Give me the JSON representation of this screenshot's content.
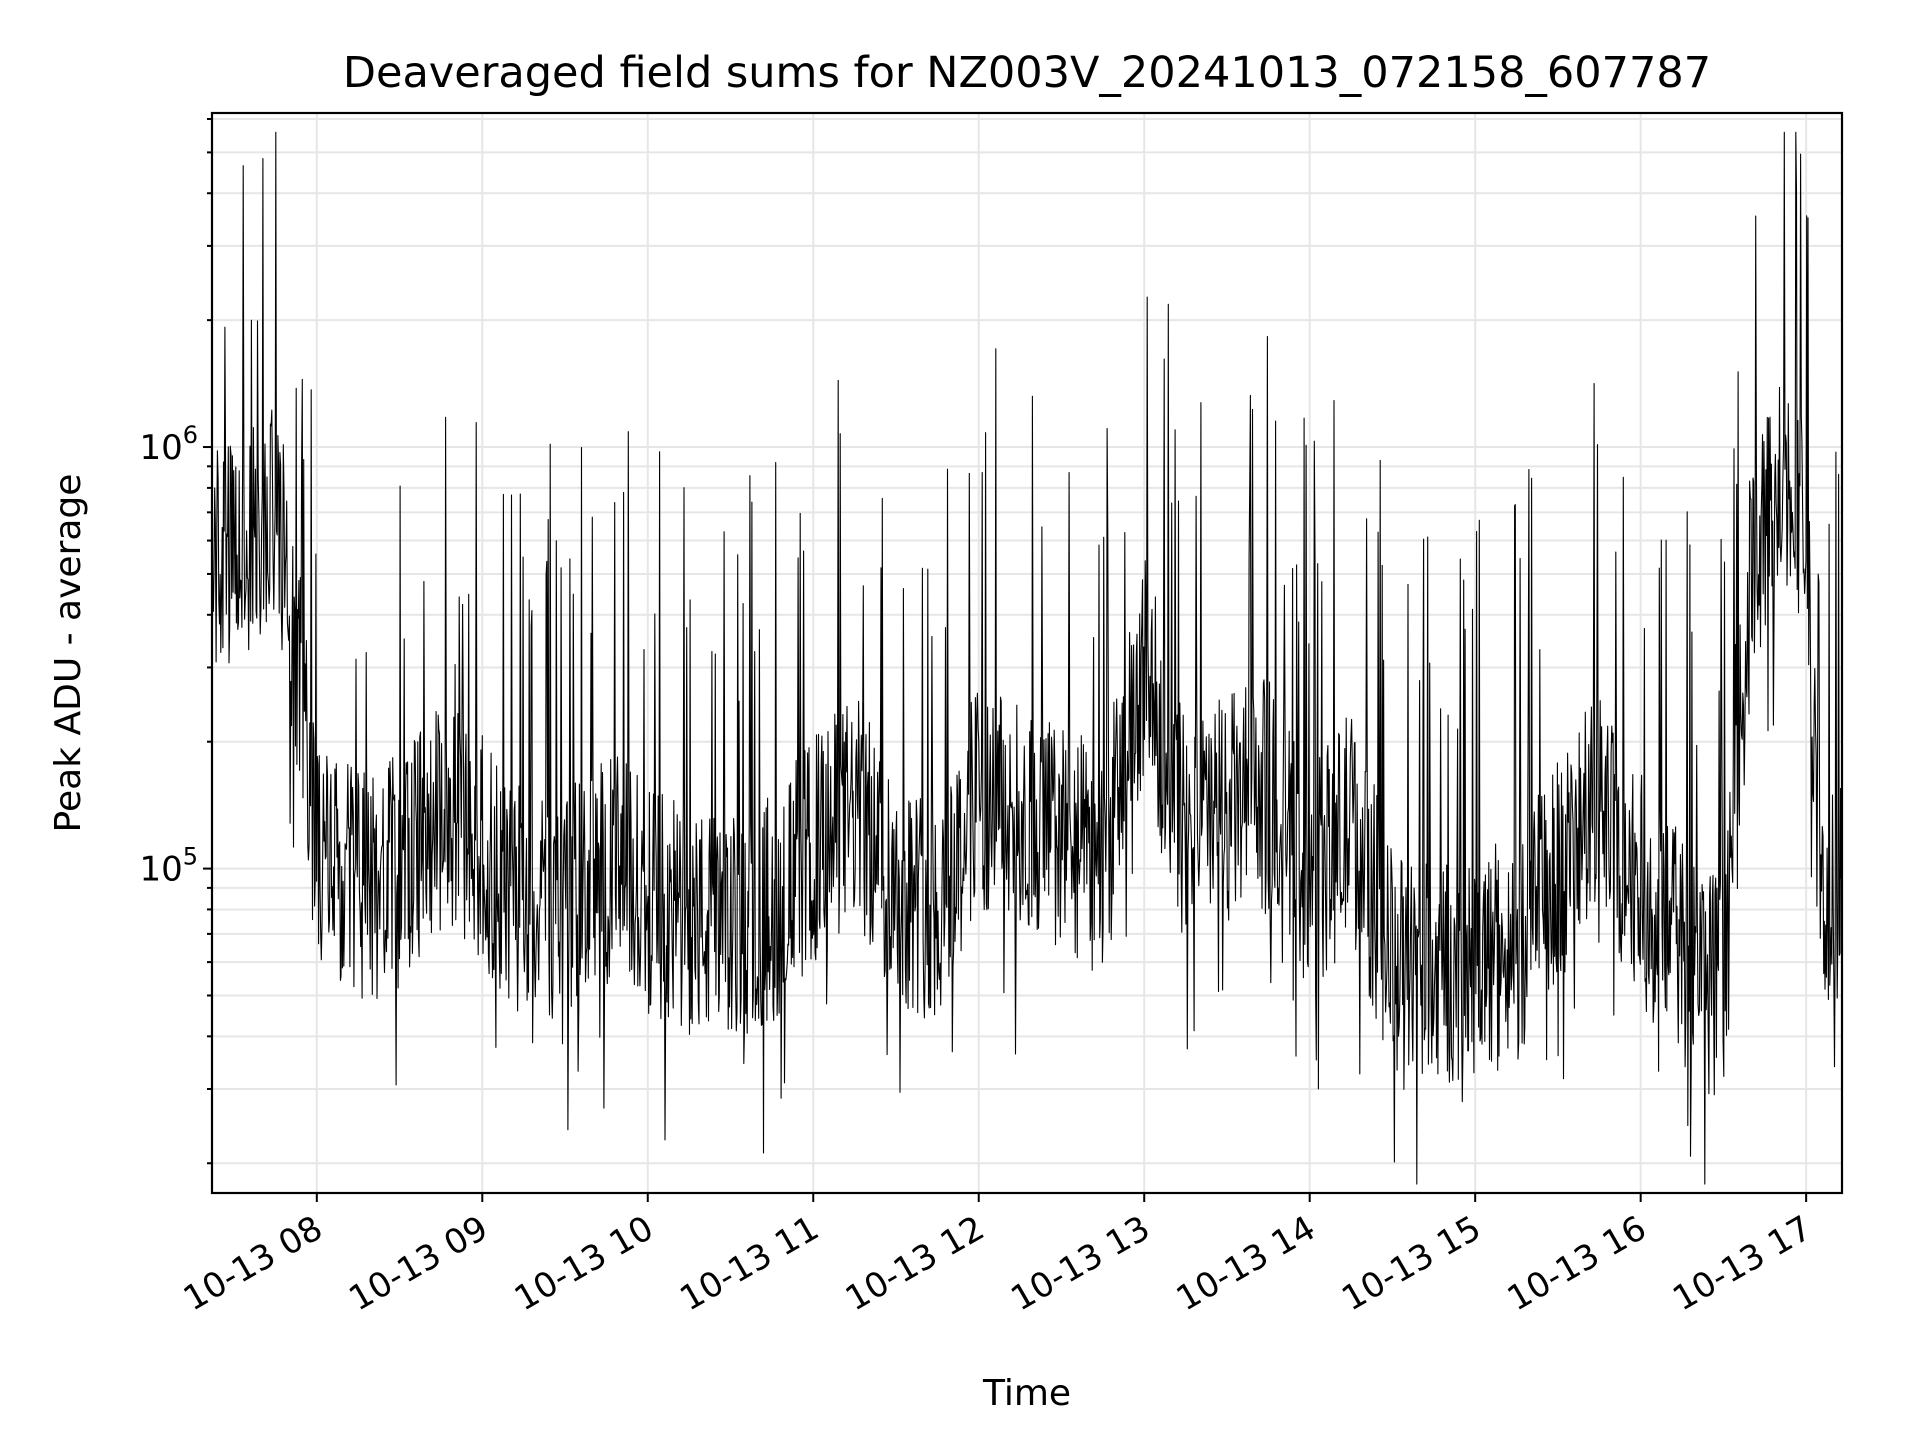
{
  "chart_data": {
    "type": "line",
    "title": "Deaveraged field sums for NZ003V_20241013_072158_607787",
    "xlabel": "Time",
    "ylabel": "Peak ADU - average",
    "y_scale": "log",
    "ylim": [
      17000,
      6200000
    ],
    "xlim": [
      "2024-10-13 07:22",
      "2024-10-13 17:13"
    ],
    "x_tick_labels": [
      "10-13 08",
      "10-13 09",
      "10-13 10",
      "10-13 11",
      "10-13 12",
      "10-13 13",
      "10-13 14",
      "10-13 15",
      "10-13 16",
      "10-13 17"
    ],
    "y_tick_labels": [
      {
        "base": "10",
        "exp": "5",
        "value": 100000
      },
      {
        "base": "10",
        "exp": "6",
        "value": 1000000
      }
    ],
    "grid": true,
    "series": [
      {
        "color": "#000000",
        "x": [
          "2024-10-13 07:22",
          "2024-10-13 07:30",
          "2024-10-13 07:38",
          "2024-10-13 07:46",
          "2024-10-13 07:50",
          "2024-10-13 07:55",
          "2024-10-13 08:00",
          "2024-10-13 08:10",
          "2024-10-13 08:20",
          "2024-10-13 08:30",
          "2024-10-13 08:40",
          "2024-10-13 08:50",
          "2024-10-13 09:00",
          "2024-10-13 09:10",
          "2024-10-13 09:20",
          "2024-10-13 09:30",
          "2024-10-13 09:40",
          "2024-10-13 09:50",
          "2024-10-13 10:00",
          "2024-10-13 10:15",
          "2024-10-13 10:30",
          "2024-10-13 10:45",
          "2024-10-13 11:00",
          "2024-10-13 11:15",
          "2024-10-13 11:30",
          "2024-10-13 11:45",
          "2024-10-13 12:00",
          "2024-10-13 12:15",
          "2024-10-13 12:30",
          "2024-10-13 12:45",
          "2024-10-13 13:00",
          "2024-10-13 13:15",
          "2024-10-13 13:30",
          "2024-10-13 13:45",
          "2024-10-13 14:00",
          "2024-10-13 14:15",
          "2024-10-13 14:30",
          "2024-10-13 14:45",
          "2024-10-13 15:00",
          "2024-10-13 15:15",
          "2024-10-13 15:30",
          "2024-10-13 15:45",
          "2024-10-13 16:00",
          "2024-10-13 16:10",
          "2024-10-13 16:20",
          "2024-10-13 16:30",
          "2024-10-13 16:40",
          "2024-10-13 16:50",
          "2024-10-13 16:55",
          "2024-10-13 17:00",
          "2024-10-13 17:05",
          "2024-10-13 17:13"
        ],
        "values": [
          550000,
          540000,
          600000,
          700000,
          450000,
          250000,
          110000,
          95000,
          90000,
          100000,
          120000,
          140000,
          110000,
          85000,
          80000,
          85000,
          95000,
          100000,
          85000,
          75000,
          70000,
          80000,
          110000,
          140000,
          90000,
          80000,
          150000,
          130000,
          120000,
          100000,
          300000,
          120000,
          140000,
          150000,
          90000,
          130000,
          60000,
          55000,
          60000,
          65000,
          100000,
          140000,
          90000,
          70000,
          60000,
          50000,
          500000,
          800000,
          900000,
          600000,
          80000,
          85000
        ]
      }
    ]
  }
}
